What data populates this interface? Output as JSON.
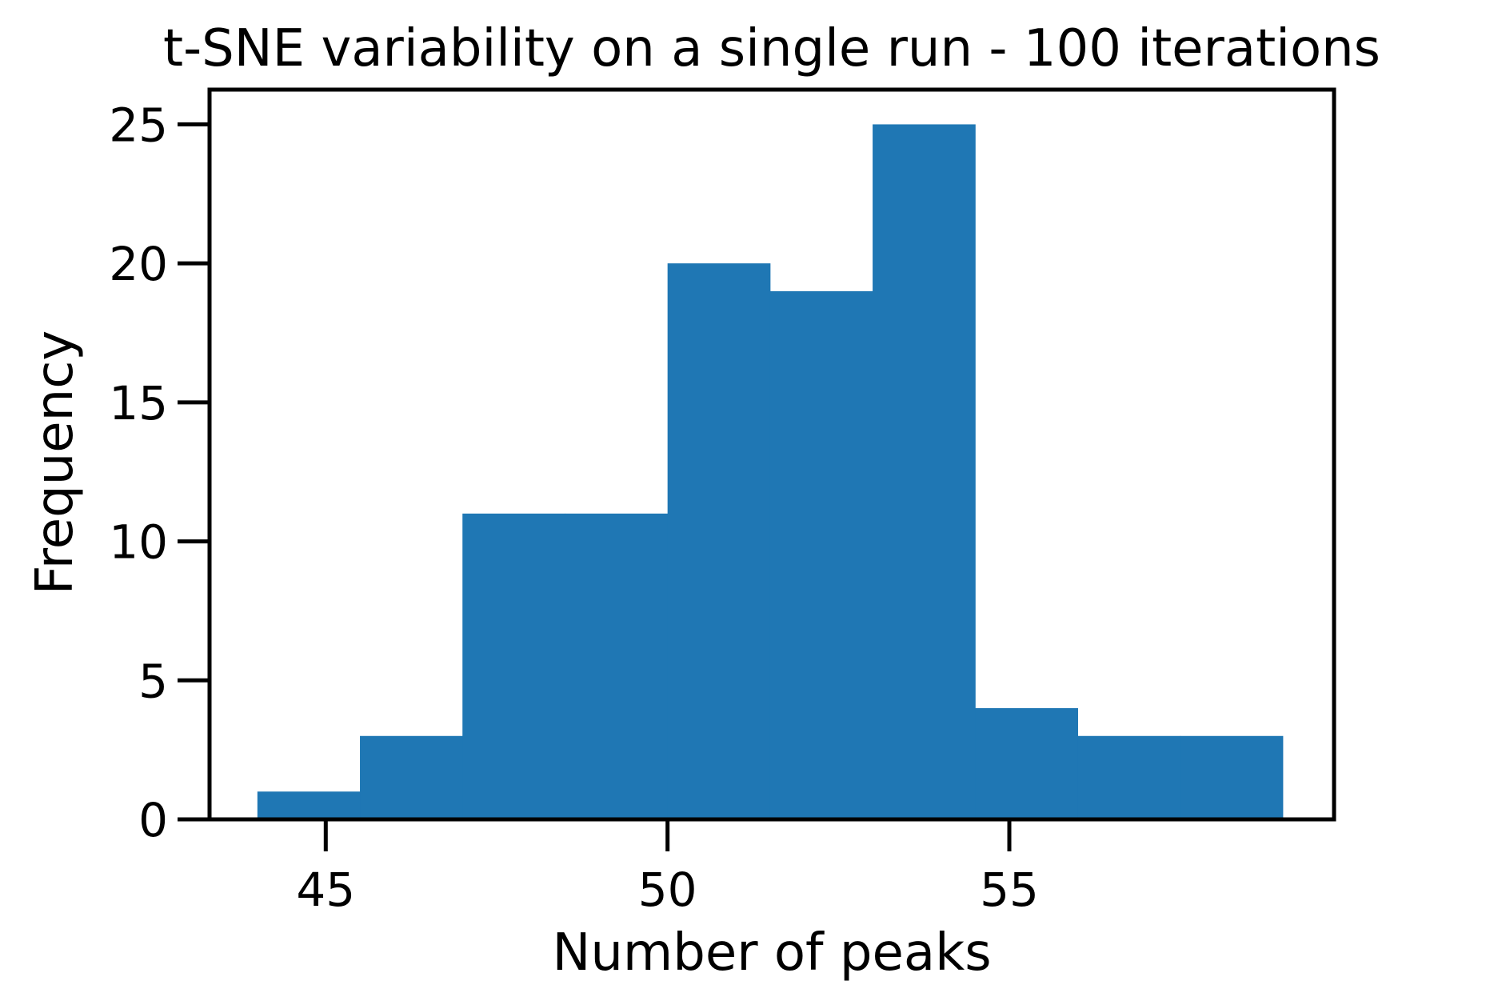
{
  "chart_data": {
    "type": "bar",
    "title": "t-SNE variability on a single run - 100 iterations",
    "xlabel": "Number of peaks",
    "ylabel": "Frequency",
    "bin_edges": [
      44.0,
      45.5,
      47.0,
      48.5,
      50.0,
      51.5,
      53.0,
      54.5,
      56.0,
      57.5,
      59.0
    ],
    "values": [
      1,
      3,
      11,
      11,
      20,
      19,
      25,
      4,
      3,
      3
    ],
    "xlim": [
      43.3,
      59.75
    ],
    "ylim": [
      0,
      26.25
    ],
    "xticks": [
      45,
      50,
      55
    ],
    "xtick_labels": [
      "45",
      "50",
      "55"
    ],
    "yticks": [
      0,
      5,
      10,
      15,
      20,
      25
    ],
    "ytick_labels": [
      "0",
      "5",
      "10",
      "15",
      "20",
      "25"
    ],
    "bar_color": "#1f77b4",
    "grid": false,
    "legend": "none"
  }
}
